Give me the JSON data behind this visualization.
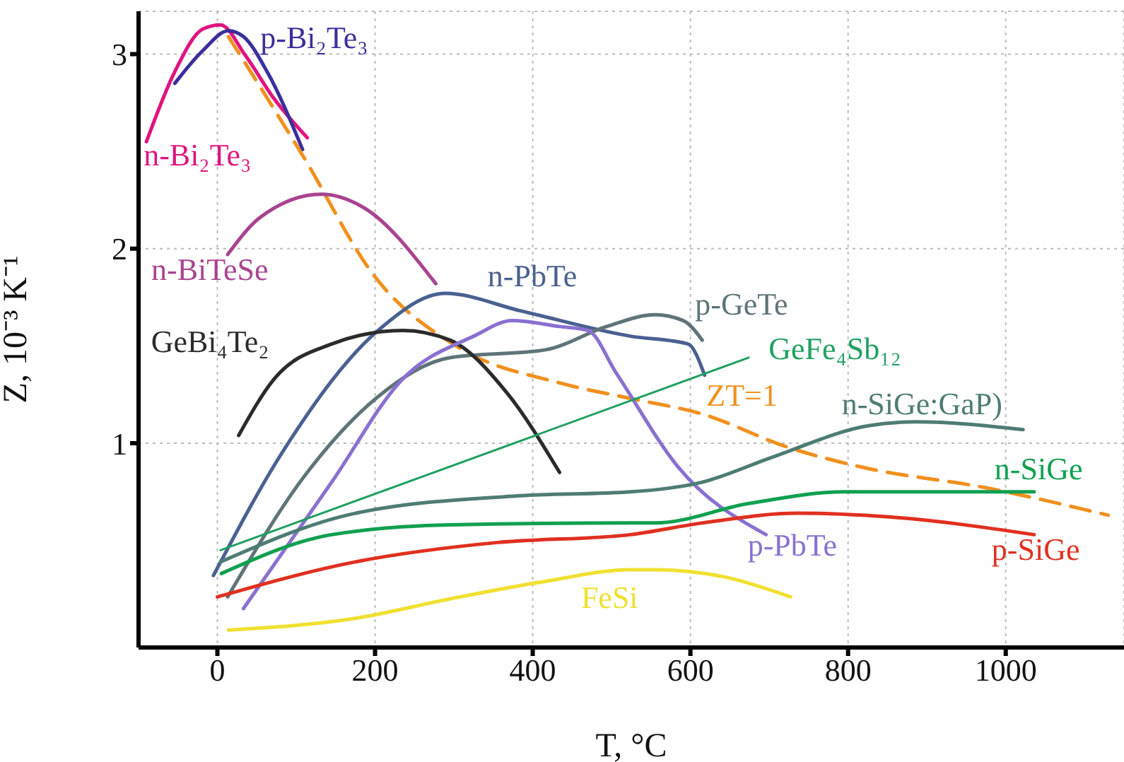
{
  "chart_data": {
    "type": "line",
    "xlabel": "T, °C",
    "ylabel": "Z, 10⁻³ K⁻¹",
    "xlim": [
      -100,
      1150
    ],
    "ylim": [
      -0.05,
      3.22
    ],
    "xticks": [
      0,
      200,
      400,
      600,
      800,
      1000
    ],
    "yticks": [
      1,
      2,
      3
    ],
    "grid": true,
    "series": [
      {
        "name": "n-Bi₂Te₃",
        "color": "#e0147f",
        "x": [
          -90,
          -54,
          -18,
          4,
          36,
          72,
          114
        ],
        "values": [
          2.55,
          2.91,
          3.13,
          3.15,
          2.99,
          2.77,
          2.57
        ]
      },
      {
        "name": "p-Bi₂Te₃",
        "color": "#3a2f9c",
        "x": [
          -54,
          -18,
          14,
          33,
          63,
          108
        ],
        "values": [
          2.85,
          3.02,
          3.12,
          3.09,
          2.91,
          2.51
        ]
      },
      {
        "name": "ZT=1",
        "color": "#f0901e",
        "line_style": "dashed",
        "x": [
          14,
          108,
          199,
          307,
          434,
          524,
          615,
          723,
          814,
          976,
          1130
        ],
        "values": [
          3.09,
          2.48,
          1.86,
          1.49,
          1.31,
          1.23,
          1.15,
          0.98,
          0.88,
          0.77,
          0.63
        ]
      },
      {
        "name": "n-BiTeSe",
        "color": "#a8448f",
        "x": [
          13,
          54,
          132,
          186,
          277
        ],
        "values": [
          1.97,
          2.16,
          2.28,
          2.21,
          1.82
        ]
      },
      {
        "name": "n-PbTe",
        "color": "#4a6090",
        "x": [
          -5,
          85,
          204,
          289,
          385,
          524,
          597,
          618
        ],
        "values": [
          0.32,
          0.97,
          1.58,
          1.77,
          1.68,
          1.55,
          1.51,
          1.35
        ]
      },
      {
        "name": "p-GeTe",
        "color": "#5f7479",
        "x": [
          13,
          114,
          204,
          295,
          416,
          494,
          555,
          591,
          615
        ],
        "values": [
          0.21,
          0.85,
          1.24,
          1.44,
          1.48,
          1.6,
          1.66,
          1.63,
          1.53
        ]
      },
      {
        "name": "GeBi₄Te₂",
        "color": "#2b2b2b",
        "x": [
          27,
          72,
          145,
          235,
          295,
          367,
          434
        ],
        "values": [
          1.04,
          1.33,
          1.51,
          1.58,
          1.53,
          1.26,
          0.85
        ]
      },
      {
        "name": "p-PbTe",
        "color": "#8a70d0",
        "x": [
          33,
          145,
          235,
          325,
          374,
          434,
          470,
          506,
          584,
          696
        ],
        "values": [
          0.15,
          0.8,
          1.33,
          1.55,
          1.63,
          1.6,
          1.58,
          1.36,
          0.88,
          0.53
        ]
      },
      {
        "name": "GeFe₄Sb₁₂",
        "color": "#1fa060",
        "x": [
          4,
          674
        ],
        "values": [
          0.45,
          1.44
        ]
      },
      {
        "name": "n-SiGe:GaP)",
        "color": "#4e7c74",
        "x": [
          4,
          175,
          385,
          524,
          615,
          705,
          826,
          886,
          1022
        ],
        "values": [
          0.39,
          0.64,
          0.73,
          0.75,
          0.8,
          0.93,
          1.09,
          1.11,
          1.07
        ]
      },
      {
        "name": "n-SiGe",
        "color": "#10a050",
        "x": [
          5,
          145,
          295,
          524,
          555,
          674,
          796,
          1036
        ],
        "values": [
          0.33,
          0.53,
          0.58,
          0.59,
          0.59,
          0.69,
          0.75,
          0.75
        ]
      },
      {
        "name": "p-SiGe",
        "color": "#e03020",
        "x": [
          0,
          175,
          356,
          524,
          615,
          736,
          855,
          1036
        ],
        "values": [
          0.21,
          0.39,
          0.49,
          0.53,
          0.59,
          0.64,
          0.62,
          0.53
        ]
      },
      {
        "name": "FeSi",
        "color": "#f0e030",
        "x": [
          14,
          175,
          295,
          416,
          524,
          555,
          646,
          727
        ],
        "values": [
          0.04,
          0.1,
          0.2,
          0.29,
          0.35,
          0.35,
          0.31,
          0.21
        ]
      }
    ]
  }
}
